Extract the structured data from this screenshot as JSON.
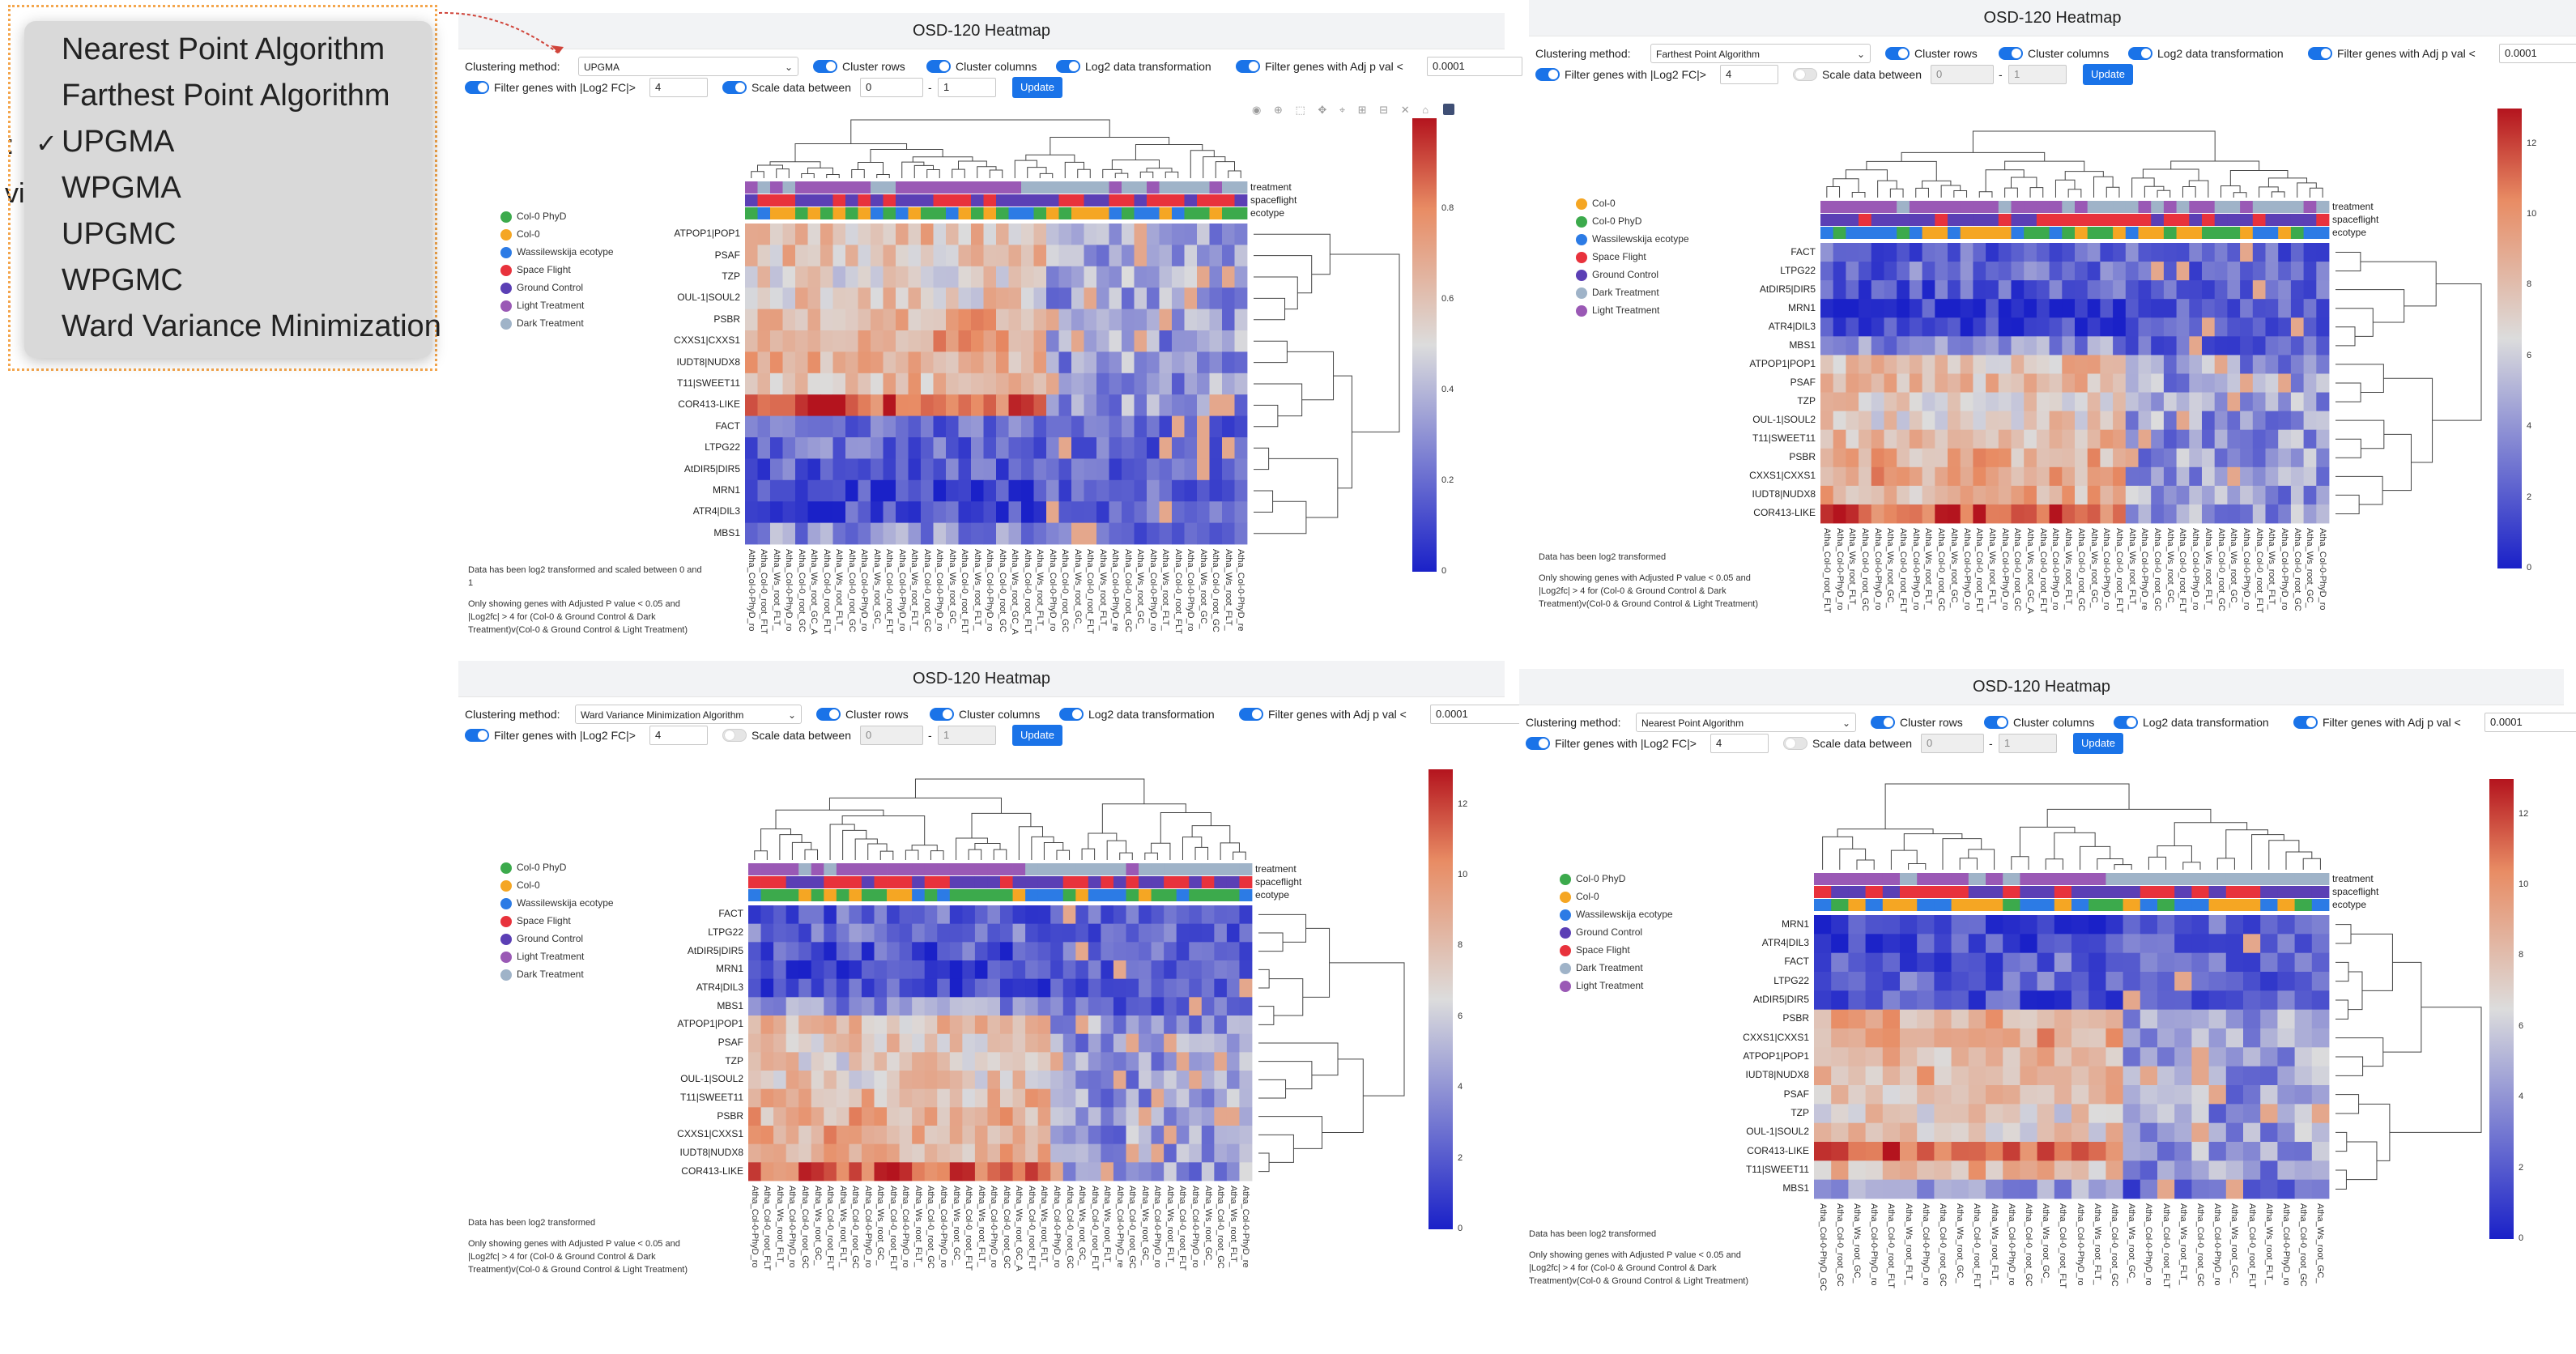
{
  "dropdown_popup": {
    "options": [
      "Nearest Point Algorithm",
      "Farthest Point Algorithm",
      "UPGMA",
      "WPGMA",
      "UPGMC",
      "WPGMC",
      "Ward Variance Minimization"
    ],
    "selected": "UPGMA",
    "check_mark": "✓",
    "clipped_text_1": ":",
    "clipped_text_2": "vi"
  },
  "colors": {
    "legend": [
      "#3caa4c",
      "#f5a623",
      "#2c7be5",
      "#e8323c",
      "#5b3fb5",
      "#9a59b5",
      "#9fb3c8"
    ],
    "heatmap_low": "#1a21c8",
    "heatmap_mid": "#dcdcdc",
    "heatmap_high": "#b4141e",
    "accent": "#1a73e8"
  },
  "panels": [
    {
      "id": "p1",
      "title": "OSD-120 Heatmap",
      "clustering_label": "Clustering method:",
      "method": "UPGMA",
      "cluster_rows_label": "Cluster rows",
      "cluster_cols_label": "Cluster columns",
      "log2_label": "Log2 data transformation",
      "adjp_label": "Filter genes with Adj p val <",
      "adjp_value": "0.0001",
      "fc_label": "Filter genes with |Log2 FC|>",
      "fc_value": "4",
      "scale_label": "Scale data between",
      "scale_min": "0",
      "scale_max": "1",
      "update_label": "Update",
      "legend": [
        "Col-0 PhyD",
        "Col-0",
        "Wassilewskija ecotype",
        "Space Flight",
        "Ground Control",
        "Light Treatment",
        "Dark Treatment"
      ],
      "rows": [
        "ATPOP1|POP1",
        "PSAF",
        "TZP",
        "OUL-1|SOUL2",
        "PSBR",
        "CXXS1|CXXS1",
        "IUDT8|NUDX8",
        "T11|SWEET11",
        "COR413-LIKE",
        "FACT",
        "LTPG22",
        "AtDIR5|DIR5",
        "MRN1",
        "ATR4|DIL3",
        "MBS1"
      ],
      "annot": [
        "treatment",
        "spaceflight",
        "ecotype"
      ],
      "colorbar_ticks": [
        "0",
        "0.2",
        "0.4",
        "0.6",
        "0.8"
      ],
      "notes": [
        "Data has been log2 transformed and scaled between 0 and 1",
        "Only showing genes with Adjusted P value < 0.05 and |Log2fc| > 4 for (Col-0 & Ground Control & Dark Treatment)v(Col-0 & Ground Control & Light Treatment)"
      ],
      "col_labels": [
        "Atha_Col-0-PhyD_ro",
        "Atha_Col-0_root_FLT",
        "Atha_Ws_root_FLT_",
        "Atha_Col-0-PhyD_ro",
        "Atha_Col-0_root_GC",
        "Atha_Ws_root_GC_A",
        "Atha_Col-0_root_FLT",
        "Atha_Ws_root_FLT_",
        "Atha_Col-0_root_GC",
        "Atha_Col-0-PhyD_ro",
        "Atha_Ws_root_GC_",
        "Atha_Col-0_root_FLT",
        "Atha_Col-0-PhyD_ro",
        "Atha_Ws_root_FLT_",
        "Atha_Col-0_root_GC",
        "Atha_Col-0-PhyD_ro",
        "Atha_Ws_root_GC_",
        "Atha_Col-0_root_FLT",
        "Atha_Ws_root_FLT_",
        "Atha_Col-0-PhyD_ro",
        "Atha_Col-0_root_GC",
        "Atha_Ws_root_GC_A",
        "Atha_Col-0_root_FLT",
        "Atha_Ws_root_FLT_",
        "Atha_Col-0-PhyD_ro",
        "Atha_Col-0_root_GC",
        "Atha_Ws_root_GC_",
        "Atha_Col-0_root_FLT",
        "Atha_Ws_root_FLT_",
        "Atha_Col-0-PhyD_re",
        "Atha_Col-0_root_GC",
        "Atha_Ws_root_GC_",
        "Atha_Col-0-PhyD_ro",
        "Atha_Ws_root_FLT_",
        "Atha_Col-0_root_FLT",
        "Atha_Col-0-PhyD_ro",
        "Atha_Ws_root_GC_",
        "Atha_Col-0_root_GC",
        "Atha_Ws_root_FLT_",
        "Atha_Col-0-PhyD_re"
      ]
    },
    {
      "id": "p2",
      "title": "OSD-120 Heatmap",
      "clustering_label": "Clustering method:",
      "method": "Farthest Point Algorithm",
      "cluster_rows_label": "Cluster rows",
      "cluster_cols_label": "Cluster columns",
      "log2_label": "Log2 data transformation",
      "adjp_label": "Filter genes with Adj p val <",
      "adjp_value": "0.0001",
      "fc_label": "Filter genes with |Log2 FC|>",
      "fc_value": "4",
      "scale_label": "Scale data between",
      "scale_min": "0",
      "scale_max": "1",
      "update_label": "Update",
      "legend": [
        "Col-0",
        "Col-0 PhyD",
        "Wassilewskija ecotype",
        "Space Flight",
        "Ground Control",
        "Dark Treatment",
        "Light Treatment"
      ],
      "rows": [
        "FACT",
        "LTPG22",
        "AtDIR5|DIR5",
        "MRN1",
        "ATR4|DIL3",
        "MBS1",
        "ATPOP1|POP1",
        "PSAF",
        "TZP",
        "OUL-1|SOUL2",
        "T11|SWEET11",
        "PSBR",
        "CXXS1|CXXS1",
        "IUDT8|NUDX8",
        "COR413-LIKE"
      ],
      "annot": [
        "treatment",
        "spaceflight",
        "ecotype"
      ],
      "colorbar_ticks": [
        "0",
        "2",
        "4",
        "6",
        "8",
        "10",
        "12"
      ],
      "notes": [
        "Data has been log2 transformed",
        "Only showing genes with Adjusted P value < 0.05 and |Log2fc| > 4 for (Col-0 & Ground Control & Dark Treatment)v(Col-0 & Ground Control & Light Treatment)"
      ],
      "col_labels": [
        "Atha_Col-0_root_FLT",
        "Atha_Col-0-PhyD_ro",
        "Atha_Ws_root_FLT_",
        "Atha_Col-0_root_GC",
        "Atha_Col-0-PhyD_ro",
        "Atha_Ws_root_GC_",
        "Atha_Col-0_root_FLT",
        "Atha_Col-0-PhyD_ro",
        "Atha_Ws_root_FLT_",
        "Atha_Col-0_root_GC",
        "Atha_Ws_root_GC_",
        "Atha_Col-0-PhyD_ro",
        "Atha_Col-0_root_FLT",
        "Atha_Ws_root_FLT_",
        "Atha_Col-0-PhyD_ro",
        "Atha_Col-0_root_GC",
        "Atha_Ws_root_GC_A",
        "Atha_Col-0_root_FLT",
        "Atha_Col-0-PhyD_ro",
        "Atha_Ws_root_FLT_",
        "Atha_Col-0_root_GC",
        "Atha_Ws_root_GC_",
        "Atha_Col-0-PhyD_ro",
        "Atha_Col-0_root_FLT",
        "Atha_Ws_root_FLT_",
        "Atha_Col-0-PhyD_re",
        "Atha_Col-0_root_GC",
        "Atha_Ws_root_GC_",
        "Atha_Col-0_root_FLT",
        "Atha_Col-0-PhyD_ro",
        "Atha_Ws_root_FLT_",
        "Atha_Col-0_root_GC",
        "Atha_Ws_root_GC_",
        "Atha_Col-0-PhyD_ro",
        "Atha_Col-0_root_FLT",
        "Atha_Ws_root_FLT_",
        "Atha_Col-0-PhyD_ro",
        "Atha_Col-0_root_GC",
        "Atha_Ws_root_GC_",
        "Atha_Col-0-PhyD_ro"
      ]
    },
    {
      "id": "p3",
      "title": "OSD-120 Heatmap",
      "clustering_label": "Clustering method:",
      "method": "Ward Variance Minimization Algorithm",
      "cluster_rows_label": "Cluster rows",
      "cluster_cols_label": "Cluster columns",
      "log2_label": "Log2 data transformation",
      "adjp_label": "Filter genes with Adj p val <",
      "adjp_value": "0.0001",
      "fc_label": "Filter genes with |Log2 FC|>",
      "fc_value": "4",
      "scale_label": "Scale data between",
      "scale_min": "0",
      "scale_max": "1",
      "update_label": "Update",
      "legend": [
        "Col-0 PhyD",
        "Col-0",
        "Wassilewskija ecotype",
        "Space Flight",
        "Ground Control",
        "Light Treatment",
        "Dark Treatment"
      ],
      "rows": [
        "FACT",
        "LTPG22",
        "AtDIR5|DIR5",
        "MRN1",
        "ATR4|DIL3",
        "MBS1",
        "ATPOP1|POP1",
        "PSAF",
        "TZP",
        "OUL-1|SOUL2",
        "T11|SWEET11",
        "PSBR",
        "CXXS1|CXXS1",
        "IUDT8|NUDX8",
        "COR413-LIKE"
      ],
      "annot": [
        "treatment",
        "spaceflight",
        "ecotype"
      ],
      "colorbar_ticks": [
        "0",
        "2",
        "4",
        "6",
        "8",
        "10",
        "12"
      ],
      "notes": [
        "Data has been log2 transformed",
        "Only showing genes with Adjusted P value < 0.05 and |Log2fc| > 4 for (Col-0 & Ground Control & Dark Treatment)v(Col-0 & Ground Control & Light Treatment)"
      ],
      "col_labels": [
        "Atha_Col-0-PhyD_ro",
        "Atha_Col-0_root_FLT",
        "Atha_Ws_root_FLT_",
        "Atha_Col-0-PhyD_ro",
        "Atha_Col-0_root_GC",
        "Atha_Ws_root_GC_",
        "Atha_Col-0_root_FLT",
        "Atha_Ws_root_FLT_",
        "Atha_Col-0_root_GC",
        "Atha_Col-0-PhyD_ro",
        "Atha_Ws_root_GC_",
        "Atha_Col-0_root_FLT",
        "Atha_Col-0-PhyD_ro",
        "Atha_Ws_root_FLT_",
        "Atha_Col-0_root_GC",
        "Atha_Col-0-PhyD_ro",
        "Atha_Ws_root_GC_",
        "Atha_Col-0_root_FLT",
        "Atha_Ws_root_FLT_",
        "Atha_Col-0-PhyD_ro",
        "Atha_Col-0_root_GC",
        "Atha_Ws_root_GC_A",
        "Atha_Col-0_root_FLT",
        "Atha_Ws_root_FLT_",
        "Atha_Col-0-PhyD_ro",
        "Atha_Col-0_root_GC",
        "Atha_Ws_root_GC_",
        "Atha_Col-0_root_FLT",
        "Atha_Ws_root_FLT_",
        "Atha_Col-0-PhyD_re",
        "Atha_Col-0_root_GC",
        "Atha_Ws_root_GC_",
        "Atha_Col-0-PhyD_ro",
        "Atha_Ws_root_FLT_",
        "Atha_Col-0_root_FLT",
        "Atha_Col-0-PhyD_ro",
        "Atha_Ws_root_GC_",
        "Atha_Col-0_root_GC",
        "Atha_Ws_root_FLT_",
        "Atha_Col-0-PhyD_re"
      ]
    },
    {
      "id": "p4",
      "title": "OSD-120 Heatmap",
      "clustering_label": "Clustering method:",
      "method": "Nearest Point Algorithm",
      "cluster_rows_label": "Cluster rows",
      "cluster_cols_label": "Cluster columns",
      "log2_label": "Log2 data transformation",
      "adjp_label": "Filter genes with Adj p val <",
      "adjp_value": "0.0001",
      "fc_label": "Filter genes with |Log2 FC|>",
      "fc_value": "4",
      "scale_label": "Scale data between",
      "scale_min": "0",
      "scale_max": "1",
      "update_label": "Update",
      "legend": [
        "Col-0 PhyD",
        "Col-0",
        "Wassilewskija ecotype",
        "Ground Control",
        "Space Flight",
        "Dark Treatment",
        "Light Treatment"
      ],
      "rows": [
        "MRN1",
        "ATR4|DIL3",
        "FACT",
        "LTPG22",
        "AtDIR5|DIR5",
        "PSBR",
        "CXXS1|CXXS1",
        "ATPOP1|POP1",
        "IUDT8|NUDX8",
        "PSAF",
        "TZP",
        "OUL-1|SOUL2",
        "COR413-LIKE",
        "T11|SWEET11",
        "MBS1"
      ],
      "annot": [
        "treatment",
        "spaceflight",
        "ecotype"
      ],
      "colorbar_ticks": [
        "0",
        "2",
        "4",
        "6",
        "8",
        "10",
        "12"
      ],
      "notes": [
        "Data has been log2 transformed",
        "Only showing genes with Adjusted P value < 0.05 and |Log2fc| > 4 for (Col-0 & Ground Control & Dark Treatment)v(Col-0 & Ground Control & Light Treatment)"
      ],
      "col_labels": [
        "Atha_Col-0-PhyD_GC",
        "Atha_Col-0_root_GC",
        "Atha_Ws_root_GC_",
        "Atha_Col-0-PhyD_ro",
        "Atha_Col-0_root_FLT",
        "Atha_Ws_root_FLT_",
        "Atha_Col-0-PhyD_ro",
        "Atha_Col-0_root_GC",
        "Atha_Ws_root_GC_",
        "Atha_Col-0_root_FLT",
        "Atha_Ws_root_FLT_",
        "Atha_Col-0-PhyD_ro",
        "Atha_Col-0_root_GC",
        "Atha_Ws_root_GC_",
        "Atha_Col-0_root_FLT",
        "Atha_Col-0-PhyD_ro",
        "Atha_Ws_root_FLT_",
        "Atha_Col-0_root_GC",
        "Atha_Ws_root_GC_",
        "Atha_Col-0-PhyD_ro",
        "Atha_Col-0_root_FLT",
        "Atha_Ws_root_FLT_",
        "Atha_Col-0_root_GC",
        "Atha_Col-0-PhyD_ro",
        "Atha_Ws_root_GC_",
        "Atha_Col-0_root_FLT",
        "Atha_Ws_root_FLT_",
        "Atha_Col-0-PhyD_ro",
        "Atha_Col-0_root_GC",
        "Atha_Ws_root_GC_"
      ]
    }
  ]
}
